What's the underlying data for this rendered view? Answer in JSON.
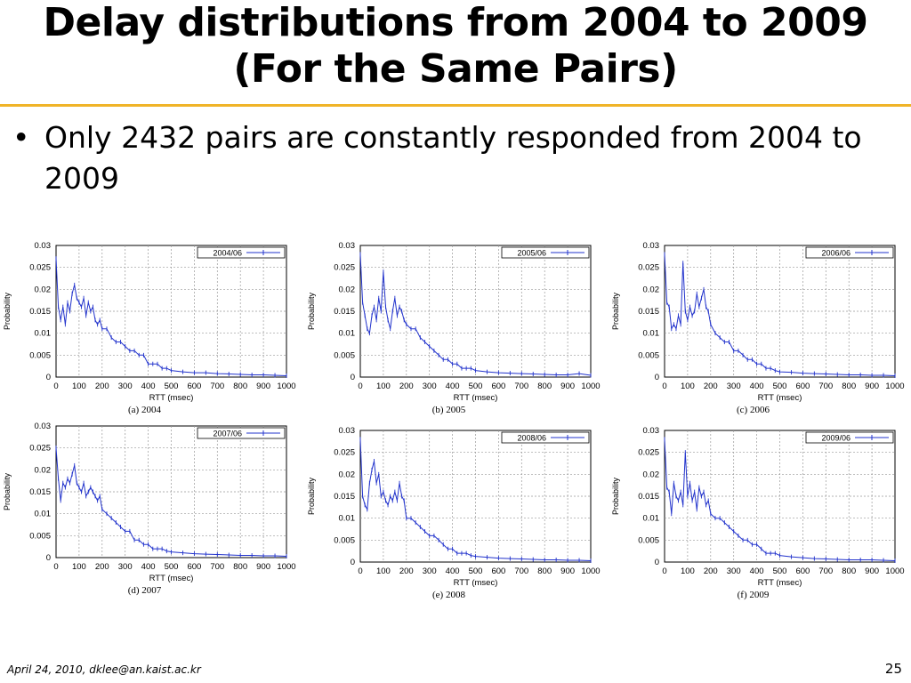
{
  "slide": {
    "title_line1": "Delay distributions from 2004 to 2009",
    "title_line2": "(For the Same Pairs)",
    "bullet_marker": "•",
    "bullet_text": "Only 2432 pairs are constantly responded from 2004 to 2009",
    "footer_left": "April 24, 2010, dklee@an.kaist.ac.kr",
    "page_number": "25",
    "accent_color": "#f0b428",
    "series_color": "#2233cc"
  },
  "chart_data": [
    {
      "type": "line",
      "caption": "(a) 2004",
      "legend": "2004/06",
      "xlabel": "RTT (msec)",
      "ylabel": "Probability",
      "xlim": [
        0,
        1000
      ],
      "ylim": [
        0,
        0.03
      ],
      "x_ticks": [
        "0",
        "100",
        "200",
        "300",
        "400",
        "500",
        "600",
        "700",
        "800",
        "900",
        "1000"
      ],
      "y_ticks": [
        "0",
        "0.005",
        "0.01",
        "0.015",
        "0.02",
        "0.025",
        "0.03"
      ],
      "grid": true,
      "legend_position": "top-right",
      "points": [
        [
          0,
          0.027
        ],
        [
          10,
          0.016
        ],
        [
          20,
          0.013
        ],
        [
          30,
          0.016
        ],
        [
          40,
          0.012
        ],
        [
          50,
          0.017
        ],
        [
          60,
          0.015
        ],
        [
          70,
          0.019
        ],
        [
          80,
          0.021
        ],
        [
          90,
          0.018
        ],
        [
          100,
          0.017
        ],
        [
          110,
          0.016
        ],
        [
          120,
          0.018
        ],
        [
          130,
          0.014
        ],
        [
          140,
          0.017
        ],
        [
          150,
          0.015
        ],
        [
          160,
          0.016
        ],
        [
          170,
          0.013
        ],
        [
          180,
          0.012
        ],
        [
          190,
          0.013
        ],
        [
          200,
          0.011
        ],
        [
          220,
          0.011
        ],
        [
          240,
          0.009
        ],
        [
          260,
          0.008
        ],
        [
          280,
          0.008
        ],
        [
          300,
          0.007
        ],
        [
          320,
          0.006
        ],
        [
          340,
          0.006
        ],
        [
          360,
          0.005
        ],
        [
          380,
          0.005
        ],
        [
          400,
          0.003
        ],
        [
          420,
          0.003
        ],
        [
          440,
          0.003
        ],
        [
          460,
          0.002
        ],
        [
          480,
          0.002
        ],
        [
          500,
          0.0015
        ],
        [
          550,
          0.0012
        ],
        [
          600,
          0.001
        ],
        [
          650,
          0.001
        ],
        [
          700,
          0.0008
        ],
        [
          750,
          0.0007
        ],
        [
          800,
          0.0006
        ],
        [
          850,
          0.0005
        ],
        [
          900,
          0.0005
        ],
        [
          950,
          0.0004
        ],
        [
          1000,
          0.0003
        ]
      ]
    },
    {
      "type": "line",
      "caption": "(b) 2005",
      "legend": "2005/06",
      "xlabel": "RTT (msec)",
      "ylabel": "Probability",
      "xlim": [
        0,
        1000
      ],
      "ylim": [
        0,
        0.03
      ],
      "x_ticks": [
        "0",
        "100",
        "200",
        "300",
        "400",
        "500",
        "600",
        "700",
        "800",
        "900",
        "1000"
      ],
      "y_ticks": [
        "0",
        "0.005",
        "0.01",
        "0.015",
        "0.02",
        "0.025",
        "0.03"
      ],
      "grid": true,
      "legend_position": "top-right",
      "points": [
        [
          0,
          0.028
        ],
        [
          10,
          0.017
        ],
        [
          20,
          0.014
        ],
        [
          30,
          0.011
        ],
        [
          40,
          0.01
        ],
        [
          50,
          0.014
        ],
        [
          60,
          0.016
        ],
        [
          70,
          0.013
        ],
        [
          80,
          0.018
        ],
        [
          90,
          0.015
        ],
        [
          100,
          0.024
        ],
        [
          110,
          0.016
        ],
        [
          120,
          0.013
        ],
        [
          130,
          0.011
        ],
        [
          140,
          0.015
        ],
        [
          150,
          0.018
        ],
        [
          160,
          0.014
        ],
        [
          170,
          0.016
        ],
        [
          180,
          0.015
        ],
        [
          190,
          0.013
        ],
        [
          200,
          0.012
        ],
        [
          220,
          0.011
        ],
        [
          240,
          0.011
        ],
        [
          260,
          0.009
        ],
        [
          280,
          0.008
        ],
        [
          300,
          0.007
        ],
        [
          320,
          0.006
        ],
        [
          340,
          0.005
        ],
        [
          360,
          0.004
        ],
        [
          380,
          0.004
        ],
        [
          400,
          0.003
        ],
        [
          420,
          0.003
        ],
        [
          440,
          0.002
        ],
        [
          460,
          0.002
        ],
        [
          480,
          0.002
        ],
        [
          500,
          0.0015
        ],
        [
          550,
          0.0012
        ],
        [
          600,
          0.001
        ],
        [
          650,
          0.0009
        ],
        [
          700,
          0.0008
        ],
        [
          750,
          0.0007
        ],
        [
          800,
          0.0006
        ],
        [
          850,
          0.0005
        ],
        [
          900,
          0.0005
        ],
        [
          950,
          0.0008
        ],
        [
          1000,
          0.0004
        ]
      ]
    },
    {
      "type": "line",
      "caption": "(c) 2006",
      "legend": "2006/06",
      "xlabel": "RTT (msec)",
      "ylabel": "Probability",
      "xlim": [
        0,
        1000
      ],
      "ylim": [
        0,
        0.03
      ],
      "x_ticks": [
        "0",
        "100",
        "200",
        "300",
        "400",
        "500",
        "600",
        "700",
        "800",
        "900",
        "1000"
      ],
      "y_ticks": [
        "0",
        "0.005",
        "0.01",
        "0.015",
        "0.02",
        "0.025",
        "0.03"
      ],
      "grid": true,
      "legend_position": "top-right",
      "points": [
        [
          0,
          0.028
        ],
        [
          10,
          0.017
        ],
        [
          20,
          0.016
        ],
        [
          30,
          0.011
        ],
        [
          40,
          0.012
        ],
        [
          50,
          0.011
        ],
        [
          60,
          0.014
        ],
        [
          70,
          0.012
        ],
        [
          80,
          0.026
        ],
        [
          90,
          0.015
        ],
        [
          100,
          0.013
        ],
        [
          110,
          0.016
        ],
        [
          120,
          0.014
        ],
        [
          130,
          0.015
        ],
        [
          140,
          0.019
        ],
        [
          150,
          0.016
        ],
        [
          160,
          0.018
        ],
        [
          170,
          0.02
        ],
        [
          180,
          0.016
        ],
        [
          190,
          0.015
        ],
        [
          200,
          0.012
        ],
        [
          220,
          0.01
        ],
        [
          240,
          0.009
        ],
        [
          260,
          0.008
        ],
        [
          280,
          0.008
        ],
        [
          300,
          0.006
        ],
        [
          320,
          0.006
        ],
        [
          340,
          0.005
        ],
        [
          360,
          0.004
        ],
        [
          380,
          0.004
        ],
        [
          400,
          0.003
        ],
        [
          420,
          0.003
        ],
        [
          440,
          0.002
        ],
        [
          460,
          0.002
        ],
        [
          480,
          0.0015
        ],
        [
          500,
          0.0012
        ],
        [
          550,
          0.0011
        ],
        [
          600,
          0.0009
        ],
        [
          650,
          0.0008
        ],
        [
          700,
          0.0007
        ],
        [
          750,
          0.0006
        ],
        [
          800,
          0.0005
        ],
        [
          850,
          0.0005
        ],
        [
          900,
          0.0004
        ],
        [
          950,
          0.0004
        ],
        [
          1000,
          0.0003
        ]
      ]
    },
    {
      "type": "line",
      "caption": "(d) 2007",
      "legend": "2007/06",
      "xlabel": "RTT (msec)",
      "ylabel": "Probability",
      "xlim": [
        0,
        1000
      ],
      "ylim": [
        0,
        0.03
      ],
      "x_ticks": [
        "0",
        "100",
        "200",
        "300",
        "400",
        "500",
        "600",
        "700",
        "800",
        "900",
        "1000"
      ],
      "y_ticks": [
        "0",
        "0.005",
        "0.01",
        "0.015",
        "0.02",
        "0.025",
        "0.03"
      ],
      "grid": true,
      "legend_position": "top-right",
      "points": [
        [
          0,
          0.025
        ],
        [
          10,
          0.018
        ],
        [
          20,
          0.013
        ],
        [
          30,
          0.017
        ],
        [
          40,
          0.016
        ],
        [
          50,
          0.018
        ],
        [
          60,
          0.017
        ],
        [
          70,
          0.019
        ],
        [
          80,
          0.021
        ],
        [
          90,
          0.017
        ],
        [
          100,
          0.016
        ],
        [
          110,
          0.015
        ],
        [
          120,
          0.017
        ],
        [
          130,
          0.014
        ],
        [
          140,
          0.015
        ],
        [
          150,
          0.016
        ],
        [
          160,
          0.015
        ],
        [
          170,
          0.014
        ],
        [
          180,
          0.013
        ],
        [
          190,
          0.014
        ],
        [
          200,
          0.011
        ],
        [
          220,
          0.01
        ],
        [
          240,
          0.009
        ],
        [
          260,
          0.008
        ],
        [
          280,
          0.007
        ],
        [
          300,
          0.006
        ],
        [
          320,
          0.006
        ],
        [
          340,
          0.004
        ],
        [
          360,
          0.004
        ],
        [
          380,
          0.003
        ],
        [
          400,
          0.003
        ],
        [
          420,
          0.002
        ],
        [
          440,
          0.002
        ],
        [
          460,
          0.002
        ],
        [
          480,
          0.0015
        ],
        [
          500,
          0.0013
        ],
        [
          550,
          0.0011
        ],
        [
          600,
          0.0009
        ],
        [
          650,
          0.0008
        ],
        [
          700,
          0.0007
        ],
        [
          750,
          0.0006
        ],
        [
          800,
          0.0005
        ],
        [
          850,
          0.0005
        ],
        [
          900,
          0.0004
        ],
        [
          950,
          0.0004
        ],
        [
          1000,
          0.0003
        ]
      ]
    },
    {
      "type": "line",
      "caption": "(e) 2008",
      "legend": "2008/06",
      "xlabel": "RTT (msec)",
      "ylabel": "Probability",
      "xlim": [
        0,
        1000
      ],
      "ylim": [
        0,
        0.03
      ],
      "x_ticks": [
        "0",
        "100",
        "200",
        "300",
        "400",
        "500",
        "600",
        "700",
        "800",
        "900",
        "1000"
      ],
      "y_ticks": [
        "0",
        "0.005",
        "0.01",
        "0.015",
        "0.02",
        "0.025",
        "0.03"
      ],
      "grid": true,
      "legend_position": "top-right",
      "points": [
        [
          0,
          0.028
        ],
        [
          10,
          0.015
        ],
        [
          20,
          0.013
        ],
        [
          30,
          0.012
        ],
        [
          40,
          0.018
        ],
        [
          50,
          0.021
        ],
        [
          60,
          0.023
        ],
        [
          70,
          0.018
        ],
        [
          80,
          0.02
        ],
        [
          90,
          0.015
        ],
        [
          100,
          0.016
        ],
        [
          110,
          0.014
        ],
        [
          120,
          0.013
        ],
        [
          130,
          0.015
        ],
        [
          140,
          0.014
        ],
        [
          150,
          0.016
        ],
        [
          160,
          0.014
        ],
        [
          170,
          0.018
        ],
        [
          180,
          0.015
        ],
        [
          190,
          0.014
        ],
        [
          200,
          0.01
        ],
        [
          220,
          0.01
        ],
        [
          240,
          0.009
        ],
        [
          260,
          0.008
        ],
        [
          280,
          0.007
        ],
        [
          300,
          0.006
        ],
        [
          320,
          0.006
        ],
        [
          340,
          0.005
        ],
        [
          360,
          0.004
        ],
        [
          380,
          0.003
        ],
        [
          400,
          0.003
        ],
        [
          420,
          0.002
        ],
        [
          440,
          0.002
        ],
        [
          460,
          0.002
        ],
        [
          480,
          0.0015
        ],
        [
          500,
          0.0013
        ],
        [
          550,
          0.0011
        ],
        [
          600,
          0.0009
        ],
        [
          650,
          0.0008
        ],
        [
          700,
          0.0007
        ],
        [
          750,
          0.0006
        ],
        [
          800,
          0.0005
        ],
        [
          850,
          0.0005
        ],
        [
          900,
          0.0004
        ],
        [
          950,
          0.0004
        ],
        [
          1000,
          0.0003
        ]
      ]
    },
    {
      "type": "line",
      "caption": "(f) 2009",
      "legend": "2009/06",
      "xlabel": "RTT (msec)",
      "ylabel": "Probability",
      "xlim": [
        0,
        1000
      ],
      "ylim": [
        0,
        0.03
      ],
      "x_ticks": [
        "0",
        "100",
        "200",
        "300",
        "400",
        "500",
        "600",
        "700",
        "800",
        "900",
        "1000"
      ],
      "y_ticks": [
        "0",
        "0.005",
        "0.01",
        "0.015",
        "0.02",
        "0.025",
        "0.03"
      ],
      "grid": true,
      "legend_position": "top-right",
      "points": [
        [
          0,
          0.028
        ],
        [
          10,
          0.017
        ],
        [
          20,
          0.016
        ],
        [
          30,
          0.011
        ],
        [
          40,
          0.018
        ],
        [
          50,
          0.015
        ],
        [
          60,
          0.014
        ],
        [
          70,
          0.016
        ],
        [
          80,
          0.013
        ],
        [
          90,
          0.025
        ],
        [
          100,
          0.015
        ],
        [
          110,
          0.018
        ],
        [
          120,
          0.014
        ],
        [
          130,
          0.016
        ],
        [
          140,
          0.012
        ],
        [
          150,
          0.017
        ],
        [
          160,
          0.015
        ],
        [
          170,
          0.016
        ],
        [
          180,
          0.013
        ],
        [
          190,
          0.014
        ],
        [
          200,
          0.011
        ],
        [
          220,
          0.01
        ],
        [
          240,
          0.01
        ],
        [
          260,
          0.009
        ],
        [
          280,
          0.008
        ],
        [
          300,
          0.007
        ],
        [
          320,
          0.006
        ],
        [
          340,
          0.005
        ],
        [
          360,
          0.005
        ],
        [
          380,
          0.004
        ],
        [
          400,
          0.004
        ],
        [
          420,
          0.003
        ],
        [
          440,
          0.002
        ],
        [
          460,
          0.002
        ],
        [
          480,
          0.002
        ],
        [
          500,
          0.0015
        ],
        [
          550,
          0.0012
        ],
        [
          600,
          0.001
        ],
        [
          650,
          0.0008
        ],
        [
          700,
          0.0007
        ],
        [
          750,
          0.0006
        ],
        [
          800,
          0.0005
        ],
        [
          850,
          0.0005
        ],
        [
          900,
          0.0005
        ],
        [
          950,
          0.0004
        ],
        [
          1000,
          0.0003
        ]
      ]
    }
  ]
}
